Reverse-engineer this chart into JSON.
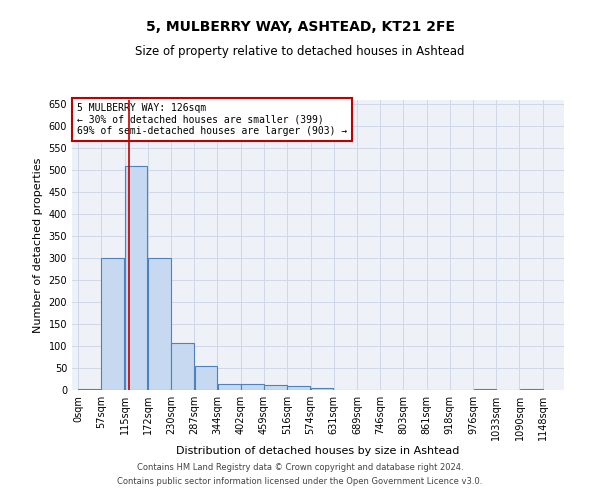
{
  "title1": "5, MULBERRY WAY, ASHTEAD, KT21 2FE",
  "title2": "Size of property relative to detached houses in Ashtead",
  "xlabel": "Distribution of detached houses by size in Ashtead",
  "ylabel": "Number of detached properties",
  "bar_edges": [
    0,
    57,
    115,
    172,
    230,
    287,
    344,
    402,
    459,
    516,
    574,
    631,
    689,
    746,
    803,
    861,
    918,
    976,
    1033,
    1090,
    1148
  ],
  "bar_values": [
    3,
    300,
    510,
    300,
    107,
    54,
    13,
    13,
    12,
    8,
    5,
    1,
    0,
    1,
    0,
    0,
    0,
    3,
    0,
    2
  ],
  "bar_color": "#c6d9f0",
  "bar_edge_color": "#4f81bd",
  "property_size": 126,
  "vline_color": "#c00000",
  "ylim": [
    0,
    660
  ],
  "yticks": [
    0,
    50,
    100,
    150,
    200,
    250,
    300,
    350,
    400,
    450,
    500,
    550,
    600,
    650
  ],
  "annotation_title": "5 MULBERRY WAY: 126sqm",
  "annotation_line1": "← 30% of detached houses are smaller (399)",
  "annotation_line2": "69% of semi-detached houses are larger (903) →",
  "annotation_box_color": "#ffffff",
  "annotation_box_edge_color": "#c00000",
  "footer1": "Contains HM Land Registry data © Crown copyright and database right 2024.",
  "footer2": "Contains public sector information licensed under the Open Government Licence v3.0.",
  "grid_color": "#d0d8e8",
  "background_color": "#eef2f8",
  "title1_fontsize": 10,
  "title2_fontsize": 8.5,
  "xlabel_fontsize": 8,
  "ylabel_fontsize": 8,
  "tick_fontsize": 7,
  "footer_fontsize": 6
}
